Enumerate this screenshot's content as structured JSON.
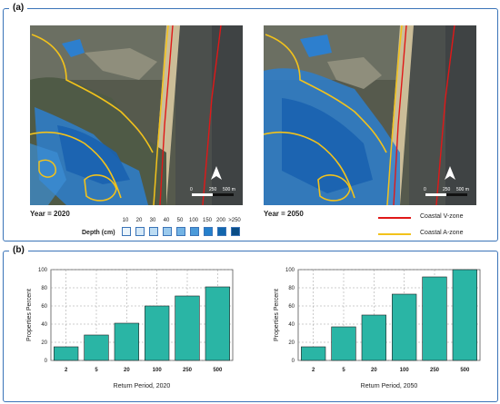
{
  "panel_a": {
    "label": "(a)",
    "map_left": {
      "year_label": "Year = 2020"
    },
    "map_right": {
      "year_label": "Year = 2050"
    },
    "scalebar": {
      "zero": "0",
      "mid": "250",
      "end": "500 m"
    },
    "depth_legend": {
      "title": "Depth (cm)",
      "values": [
        "10",
        "20",
        "30",
        "40",
        "50",
        "100",
        "150",
        "200",
        ">250"
      ],
      "colors": [
        "#eaf4fb",
        "#d6e9f7",
        "#bcdcf3",
        "#9bcaed",
        "#73b3e4",
        "#4b9ad9",
        "#2580cc",
        "#1266ad",
        "#0a4d86"
      ]
    },
    "zone_legend": [
      {
        "label": "Coastal V-zone",
        "color": "#e01818"
      },
      {
        "label": "Coastal A-zone",
        "color": "#f2c21b"
      }
    ]
  },
  "panel_b": {
    "label": "(b)"
  },
  "chart_data": [
    {
      "type": "bar",
      "categories": [
        "2",
        "5",
        "20",
        "100",
        "250",
        "500"
      ],
      "values": [
        15,
        28,
        41,
        60,
        71,
        81
      ],
      "xlabel": "Return Period, 2020",
      "ylabel": "Properties Percent",
      "ylim": [
        0,
        100
      ],
      "yticks": [
        "0",
        "20",
        "40",
        "60",
        "80",
        "100"
      ],
      "grid": true,
      "bar_color": "#2ab5a5"
    },
    {
      "type": "bar",
      "categories": [
        "2",
        "5",
        "20",
        "100",
        "250",
        "500"
      ],
      "values": [
        15,
        37,
        50,
        73,
        92,
        100
      ],
      "xlabel": "Return Period, 2050",
      "ylabel": "Properties Percent",
      "ylim": [
        0,
        100
      ],
      "yticks": [
        "0",
        "20",
        "40",
        "60",
        "80",
        "100"
      ],
      "grid": true,
      "bar_color": "#2ab5a5"
    }
  ]
}
